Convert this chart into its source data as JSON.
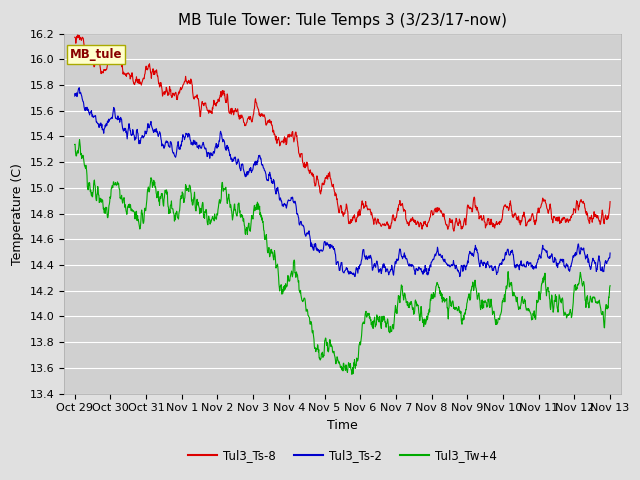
{
  "title": "MB Tule Tower: Tule Temps 3 (3/23/17-now)",
  "xlabel": "Time",
  "ylabel": "Temperature (C)",
  "ylim": [
    13.4,
    16.2
  ],
  "yticks": [
    13.4,
    13.6,
    13.8,
    14.0,
    14.2,
    14.4,
    14.6,
    14.8,
    15.0,
    15.2,
    15.4,
    15.6,
    15.8,
    16.0,
    16.2
  ],
  "xtick_labels": [
    "Oct 29",
    "Oct 30",
    "Oct 31",
    "Nov 1",
    "Nov 2",
    "Nov 3",
    "Nov 4",
    "Nov 5",
    "Nov 6",
    "Nov 7",
    "Nov 8",
    "Nov 9",
    "Nov 10",
    "Nov 11",
    "Nov 12",
    "Nov 13"
  ],
  "xtick_positions": [
    0,
    1,
    2,
    3,
    4,
    5,
    6,
    7,
    8,
    9,
    10,
    11,
    12,
    13,
    14,
    15
  ],
  "xlim": [
    -0.3,
    15.3
  ],
  "line_colors": [
    "#dd0000",
    "#0000cc",
    "#00aa00"
  ],
  "line_labels": [
    "Tul3_Ts-8",
    "Tul3_Ts-2",
    "Tul3_Tw+4"
  ],
  "legend_label": "MB_tule",
  "bg_color": "#e0e0e0",
  "plot_bg_color": "#d0d0d0",
  "grid_color": "#ffffff",
  "title_fontsize": 11,
  "axis_fontsize": 9,
  "tick_fontsize": 8
}
